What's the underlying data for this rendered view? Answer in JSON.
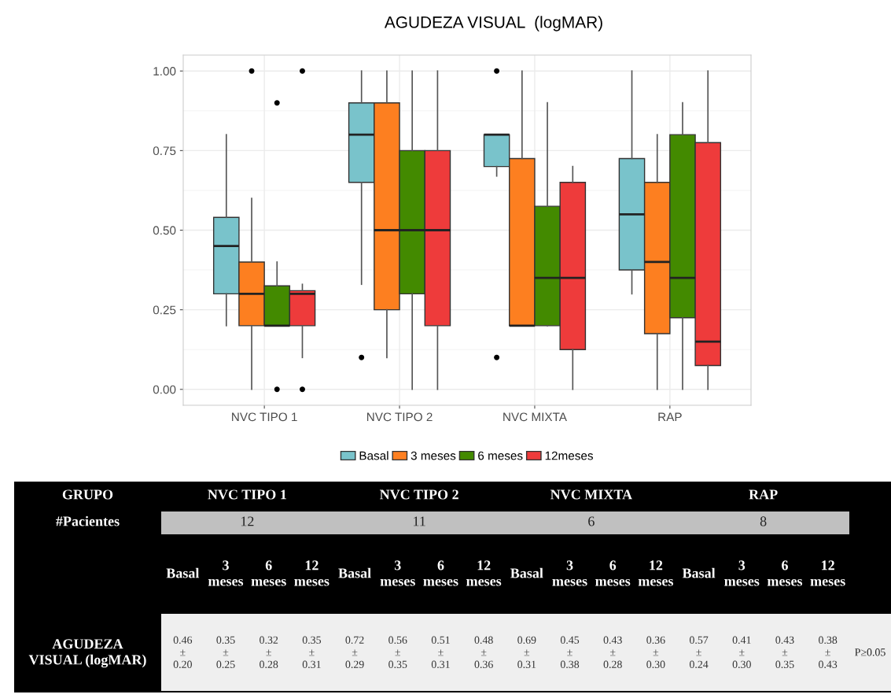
{
  "chart_data": [
    {
      "type": "box",
      "title": "AGUDEZA VISUAL  (logMAR)",
      "categories": [
        "NVC TIPO 1",
        "NVC TIPO 2",
        "NVC MIXTA",
        "RAP"
      ],
      "series": [
        {
          "name": "Basal",
          "color": "#79c3cb",
          "boxes": [
            {
              "low": 0.2,
              "q1": 0.3,
              "median": 0.45,
              "q3": 0.54,
              "high": 0.8
            },
            {
              "low": 0.33,
              "q1": 0.65,
              "median": 0.8,
              "q3": 0.9,
              "high": 1.0,
              "outliers": [
                0.1
              ]
            },
            {
              "low": 0.67,
              "q1": 0.7,
              "median": 0.8,
              "q3": 0.8,
              "high": 0.8,
              "outliers": [
                1.0,
                0.1
              ]
            },
            {
              "low": 0.3,
              "q1": 0.375,
              "median": 0.55,
              "q3": 0.725,
              "high": 1.0
            }
          ]
        },
        {
          "name": "3 meses",
          "color": "#fd7f20",
          "boxes": [
            {
              "low": 0.0,
              "q1": 0.2,
              "median": 0.3,
              "q3": 0.4,
              "high": 0.6,
              "outliers": [
                1.0
              ]
            },
            {
              "low": 0.1,
              "q1": 0.25,
              "median": 0.5,
              "q3": 0.9,
              "high": 1.0
            },
            {
              "low": 0.2,
              "q1": 0.2,
              "median": 0.2,
              "q3": 0.725,
              "high": 1.0
            },
            {
              "low": 0.0,
              "q1": 0.175,
              "median": 0.4,
              "q3": 0.65,
              "high": 0.8
            }
          ]
        },
        {
          "name": "6 meses",
          "color": "#438a00",
          "boxes": [
            {
              "low": 0.2,
              "q1": 0.2,
              "median": 0.2,
              "q3": 0.325,
              "high": 0.4,
              "outliers": [
                0.9,
                0.0
              ]
            },
            {
              "low": 0.0,
              "q1": 0.3,
              "median": 0.5,
              "q3": 0.75,
              "high": 1.0
            },
            {
              "low": 0.2,
              "q1": 0.2,
              "median": 0.35,
              "q3": 0.575,
              "high": 0.9
            },
            {
              "low": 0.0,
              "q1": 0.225,
              "median": 0.35,
              "q3": 0.8,
              "high": 0.9
            }
          ]
        },
        {
          "name": "12meses",
          "color": "#ee3b3b",
          "boxes": [
            {
              "low": 0.1,
              "q1": 0.2,
              "median": 0.3,
              "q3": 0.31,
              "high": 0.33,
              "outliers": [
                1.0,
                0.0
              ]
            },
            {
              "low": 0.0,
              "q1": 0.2,
              "median": 0.5,
              "q3": 0.75,
              "high": 1.0
            },
            {
              "low": 0.0,
              "q1": 0.125,
              "median": 0.35,
              "q3": 0.65,
              "high": 0.7
            },
            {
              "low": 0.0,
              "q1": 0.075,
              "median": 0.15,
              "q3": 0.775,
              "high": 1.0
            }
          ]
        }
      ],
      "ylim": [
        -0.05,
        1.05
      ],
      "yticks": [
        {
          "value": 0,
          "label": "0.00"
        },
        {
          "value": 0.25,
          "label": "0.25"
        },
        {
          "value": 0.5,
          "label": "0.50"
        },
        {
          "value": 0.75,
          "label": "0.75"
        },
        {
          "value": 1,
          "label": "1.00"
        }
      ],
      "grid": true,
      "legend": "bottom"
    },
    {
      "type": "other",
      "annotations": [
        "GRUPO",
        "NVC TIPO 1",
        "NVC TIPO 2",
        "NVC MIXTA",
        "RAP",
        "#Pacientes",
        "12",
        "11",
        "6",
        "8",
        "Basal",
        "3\nmeses",
        "6\nmeses",
        "12\nmeses",
        "Basal",
        "3\nmeses",
        "6\nmeses",
        "12\nmeses",
        "Basal",
        "3\nmeses",
        "6\nmeses",
        "12\nmeses",
        "Basal",
        "3\nmeses",
        "6\nmeses",
        "12\nmeses",
        "AGUDEZA\nVISUAL (logMAR)",
        "0.46\n±\n0.20",
        "0.35\n±\n0.25",
        "0.32\n±\n0.28",
        "0.35\n±\n0.31",
        "0.72\n±\n0.29",
        "0.56\n±\n0.35",
        "0.51\n±\n0.31",
        "0.48\n±\n0.36",
        "0.69\n±\n0.31",
        "0.45\n±\n0.38",
        "0.43\n±\n0.28",
        "0.36\n±\n0.30",
        "0.57\n±\n0.24",
        "0.41\n±\n0.30",
        "0.43\n±\n0.35",
        "0.38\n±\n0.43",
        "P≥0.05"
      ]
    }
  ]
}
